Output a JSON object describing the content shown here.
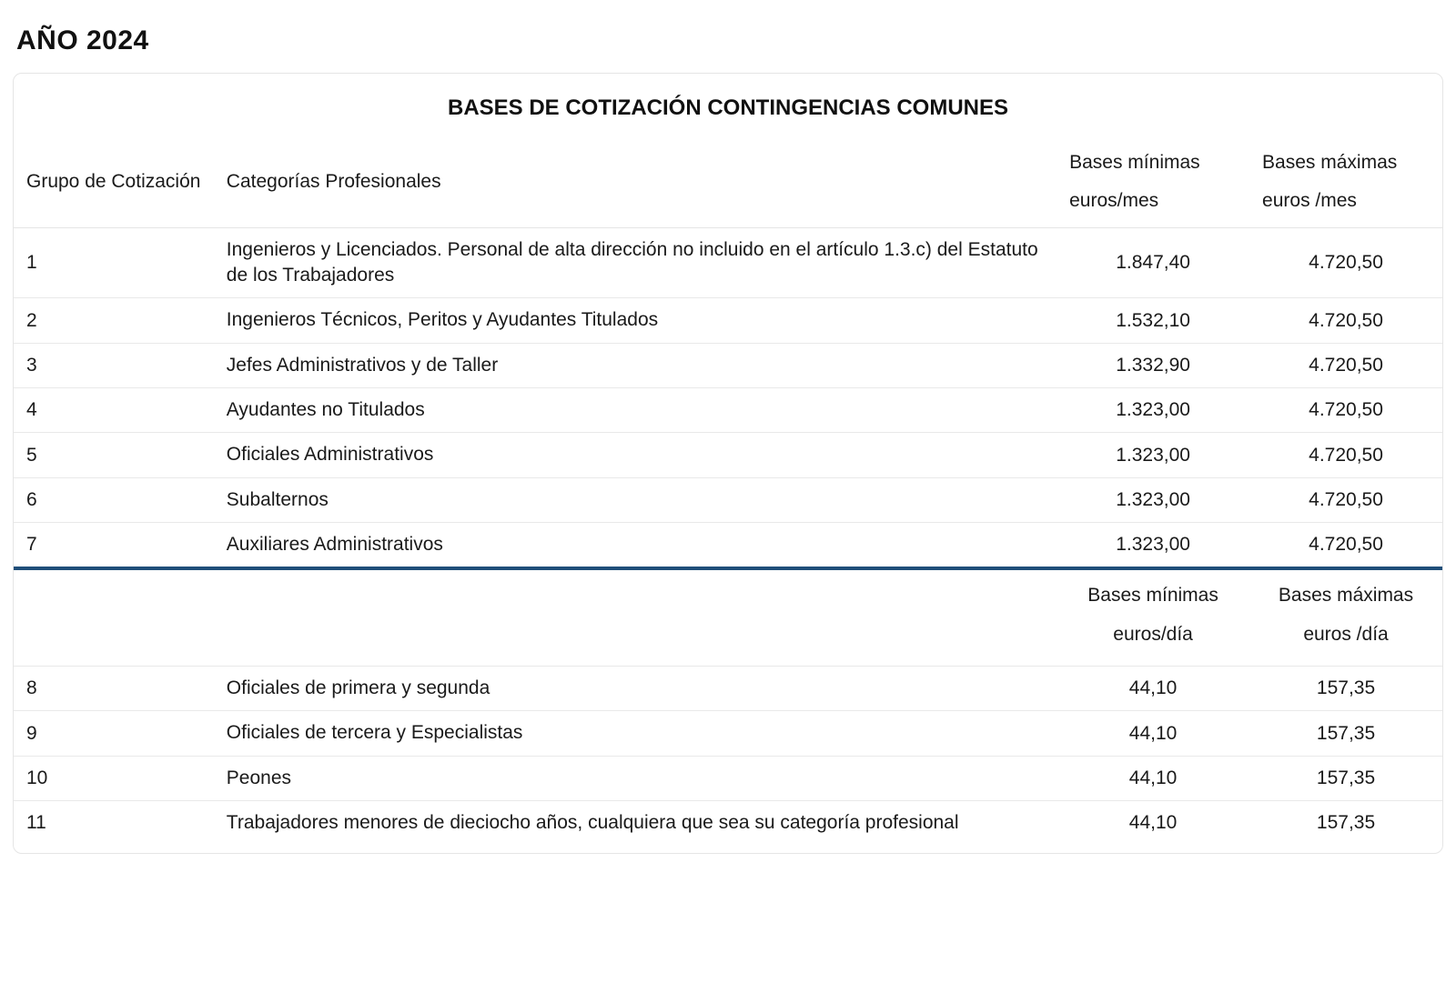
{
  "title": "AÑO 2024",
  "table": {
    "caption": "BASES DE COTIZACIÓN CONTINGENCIAS COMUNES",
    "colors": {
      "border": "#e5e5e5",
      "separator": "#1f4e79",
      "text": "#1a1a1a",
      "background": "#ffffff"
    },
    "headers": {
      "grupo": "Grupo de Cotización",
      "categorias": "Categorías Profesionales",
      "min_l1": "Bases mínimas",
      "min_l2_mes": "euros/mes",
      "max_l1": "Bases máximas",
      "max_l2_mes": "euros /mes",
      "min_l2_dia": "euros/día",
      "max_l2_dia": "euros /día"
    },
    "rows_mes": [
      {
        "grupo": "1",
        "categoria": "Ingenieros y Licenciados. Personal de alta dirección no incluido en el artículo 1.3.c) del Estatuto de los Trabajadores",
        "min": "1.847,40",
        "max": "4.720,50"
      },
      {
        "grupo": "2",
        "categoria": "Ingenieros Técnicos, Peritos y Ayudantes Titulados",
        "min": "1.532,10",
        "max": "4.720,50"
      },
      {
        "grupo": "3",
        "categoria": "Jefes Administrativos y de Taller",
        "min": "1.332,90",
        "max": "4.720,50"
      },
      {
        "grupo": "4",
        "categoria": "Ayudantes no Titulados",
        "min": "1.323,00",
        "max": "4.720,50"
      },
      {
        "grupo": "5",
        "categoria": "Oficiales Administrativos",
        "min": "1.323,00",
        "max": "4.720,50"
      },
      {
        "grupo": "6",
        "categoria": "Subalternos",
        "min": "1.323,00",
        "max": "4.720,50"
      },
      {
        "grupo": "7",
        "categoria": "Auxiliares Administrativos",
        "min": "1.323,00",
        "max": "4.720,50"
      }
    ],
    "rows_dia": [
      {
        "grupo": "8",
        "categoria": "Oficiales de primera y segunda",
        "min": "44,10",
        "max": "157,35"
      },
      {
        "grupo": "9",
        "categoria": "Oficiales de tercera y Especialistas",
        "min": "44,10",
        "max": "157,35"
      },
      {
        "grupo": "10",
        "categoria": "Peones",
        "min": "44,10",
        "max": "157,35"
      },
      {
        "grupo": "11",
        "categoria": "Trabajadores menores de dieciocho años, cualquiera que sea su categoría profesional",
        "min": "44,10",
        "max": "157,35"
      }
    ]
  }
}
